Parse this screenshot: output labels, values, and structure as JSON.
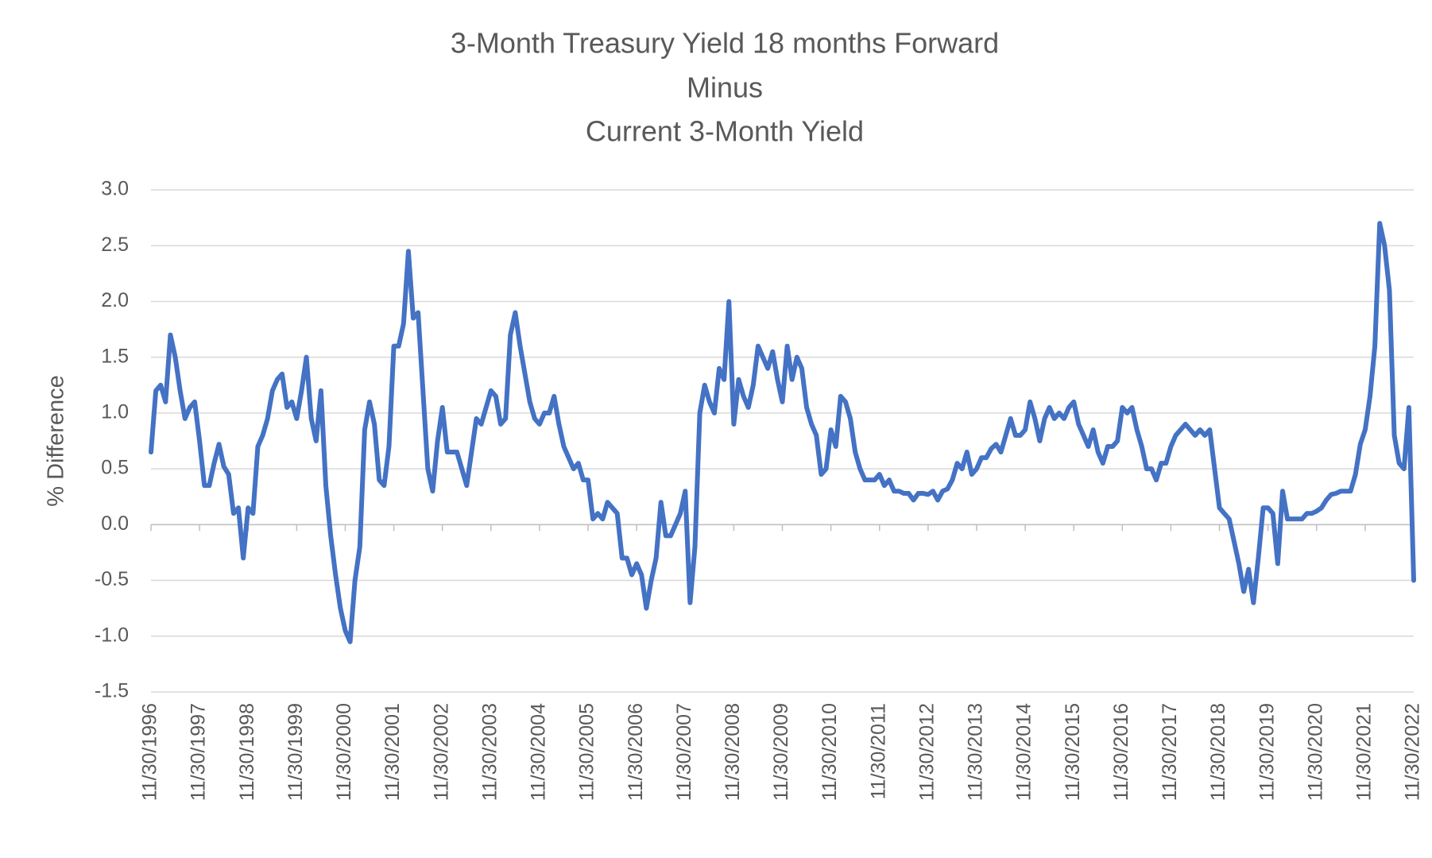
{
  "chart_data": {
    "type": "line",
    "title": [
      "3-Month Treasury Yield 18 months Forward",
      "Minus",
      "Current 3-Month Yield"
    ],
    "y_label": "% Difference",
    "categories": [
      "11/30/1996",
      null,
      null,
      null,
      null,
      null,
      null,
      null,
      null,
      null,
      "11/30/1997",
      null,
      null,
      null,
      null,
      null,
      null,
      null,
      null,
      null,
      "11/30/1998",
      null,
      null,
      null,
      null,
      null,
      null,
      null,
      null,
      null,
      "11/30/1999",
      null,
      null,
      null,
      null,
      null,
      null,
      null,
      null,
      null,
      "11/30/2000",
      null,
      null,
      null,
      null,
      null,
      null,
      null,
      null,
      null,
      "11/30/2001",
      null,
      null,
      null,
      null,
      null,
      null,
      null,
      null,
      null,
      "11/30/2002",
      null,
      null,
      null,
      null,
      null,
      null,
      null,
      null,
      null,
      "11/30/2003",
      null,
      null,
      null,
      null,
      null,
      null,
      null,
      null,
      null,
      "11/30/2004",
      null,
      null,
      null,
      null,
      null,
      null,
      null,
      null,
      null,
      "11/30/2005",
      null,
      null,
      null,
      null,
      null,
      null,
      null,
      null,
      null,
      "11/30/2006",
      null,
      null,
      null,
      null,
      null,
      null,
      null,
      null,
      null,
      "11/30/2007",
      null,
      null,
      null,
      null,
      null,
      null,
      null,
      null,
      null,
      "11/30/2008",
      null,
      null,
      null,
      null,
      null,
      null,
      null,
      null,
      null,
      "11/30/2009",
      null,
      null,
      null,
      null,
      null,
      null,
      null,
      null,
      null,
      "11/30/2010",
      null,
      null,
      null,
      null,
      null,
      null,
      null,
      null,
      null,
      "11/30/2011",
      null,
      null,
      null,
      null,
      null,
      null,
      null,
      null,
      null,
      "11/30/2012",
      null,
      null,
      null,
      null,
      null,
      null,
      null,
      null,
      null,
      "11/30/2013",
      null,
      null,
      null,
      null,
      null,
      null,
      null,
      null,
      null,
      "11/30/2014",
      null,
      null,
      null,
      null,
      null,
      null,
      null,
      null,
      null,
      "11/30/2015",
      null,
      null,
      null,
      null,
      null,
      null,
      null,
      null,
      null,
      "11/30/2016",
      null,
      null,
      null,
      null,
      null,
      null,
      null,
      null,
      null,
      "11/30/2017",
      null,
      null,
      null,
      null,
      null,
      null,
      null,
      null,
      null,
      "11/30/2018",
      null,
      null,
      null,
      null,
      null,
      null,
      null,
      null,
      null,
      "11/30/2019",
      null,
      null,
      null,
      null,
      null,
      null,
      null,
      null,
      null,
      "11/30/2020",
      null,
      null,
      null,
      null,
      null,
      null,
      null,
      null,
      null,
      "11/30/2021",
      null,
      null,
      null,
      null,
      null,
      null,
      null,
      null,
      null,
      "11/30/2022"
    ],
    "series": [
      {
        "name": "3-Month Treasury Yield 18 months Forward Minus Current 3-Month Yield",
        "color": "#4472c4",
        "values": [
          0.65,
          1.2,
          1.25,
          1.1,
          1.7,
          1.5,
          1.2,
          0.95,
          1.05,
          1.1,
          0.75,
          0.35,
          0.35,
          0.55,
          0.72,
          0.52,
          0.45,
          0.1,
          0.15,
          -0.3,
          0.15,
          0.1,
          0.7,
          0.8,
          0.95,
          1.2,
          1.3,
          1.35,
          1.05,
          1.1,
          0.95,
          1.2,
          1.5,
          0.95,
          0.75,
          1.2,
          0.35,
          -0.1,
          -0.45,
          -0.75,
          -0.95,
          -1.05,
          -0.5,
          -0.2,
          0.85,
          1.1,
          0.9,
          0.4,
          0.35,
          0.7,
          1.6,
          1.6,
          1.8,
          2.45,
          1.85,
          1.9,
          1.2,
          0.5,
          0.3,
          0.75,
          1.05,
          0.65,
          0.65,
          0.65,
          0.5,
          0.35,
          0.65,
          0.95,
          0.9,
          1.05,
          1.2,
          1.15,
          0.9,
          0.95,
          1.7,
          1.9,
          1.6,
          1.35,
          1.1,
          0.95,
          0.9,
          1.0,
          1.0,
          1.15,
          0.9,
          0.7,
          0.6,
          0.5,
          0.55,
          0.4,
          0.4,
          0.05,
          0.1,
          0.05,
          0.2,
          0.15,
          0.1,
          -0.3,
          -0.3,
          -0.45,
          -0.35,
          -0.45,
          -0.75,
          -0.5,
          -0.3,
          0.2,
          -0.1,
          -0.1,
          0.0,
          0.1,
          0.3,
          -0.7,
          -0.2,
          1.0,
          1.25,
          1.1,
          1.0,
          1.4,
          1.3,
          2.0,
          0.9,
          1.3,
          1.15,
          1.05,
          1.25,
          1.6,
          1.5,
          1.4,
          1.55,
          1.3,
          1.1,
          1.6,
          1.3,
          1.5,
          1.4,
          1.05,
          0.9,
          0.8,
          0.45,
          0.5,
          0.85,
          0.7,
          1.15,
          1.1,
          0.95,
          0.65,
          0.5,
          0.4,
          0.4,
          0.4,
          0.45,
          0.35,
          0.4,
          0.3,
          0.3,
          0.28,
          0.28,
          0.22,
          0.28,
          0.28,
          0.27,
          0.3,
          0.22,
          0.3,
          0.32,
          0.4,
          0.55,
          0.5,
          0.65,
          0.45,
          0.5,
          0.6,
          0.6,
          0.68,
          0.72,
          0.65,
          0.8,
          0.95,
          0.8,
          0.8,
          0.85,
          1.1,
          0.95,
          0.75,
          0.95,
          1.05,
          0.95,
          1.0,
          0.95,
          1.05,
          1.1,
          0.9,
          0.8,
          0.7,
          0.85,
          0.65,
          0.55,
          0.7,
          0.7,
          0.75,
          1.05,
          1.0,
          1.05,
          0.85,
          0.7,
          0.5,
          0.5,
          0.4,
          0.55,
          0.55,
          0.7,
          0.8,
          0.85,
          0.9,
          0.85,
          0.8,
          0.85,
          0.8,
          0.85,
          0.5,
          0.15,
          0.1,
          0.05,
          -0.15,
          -0.35,
          -0.6,
          -0.4,
          -0.7,
          -0.3,
          0.15,
          0.15,
          0.1,
          -0.35,
          0.3,
          0.05,
          0.05,
          0.05,
          0.05,
          0.1,
          0.1,
          0.12,
          0.15,
          0.22,
          0.27,
          0.28,
          0.3,
          0.3,
          0.3,
          0.45,
          0.72,
          0.85,
          1.15,
          1.6,
          2.7,
          2.5,
          2.1,
          0.8,
          0.55,
          0.5,
          1.05,
          -0.5
        ]
      }
    ],
    "ylim": [
      -1.5,
      3.0
    ],
    "yticks": [
      {
        "value": 3.0,
        "label": "3.0"
      },
      2.5,
      {
        "value": 2.0,
        "label": "2.0"
      },
      1.5,
      {
        "value": 1.0,
        "label": "1.0"
      },
      0.5,
      {
        "value": 0.0,
        "label": "0.0"
      },
      -0.5,
      {
        "value": -1.0,
        "label": "-1.0"
      },
      -1.5
    ],
    "grid": true
  }
}
